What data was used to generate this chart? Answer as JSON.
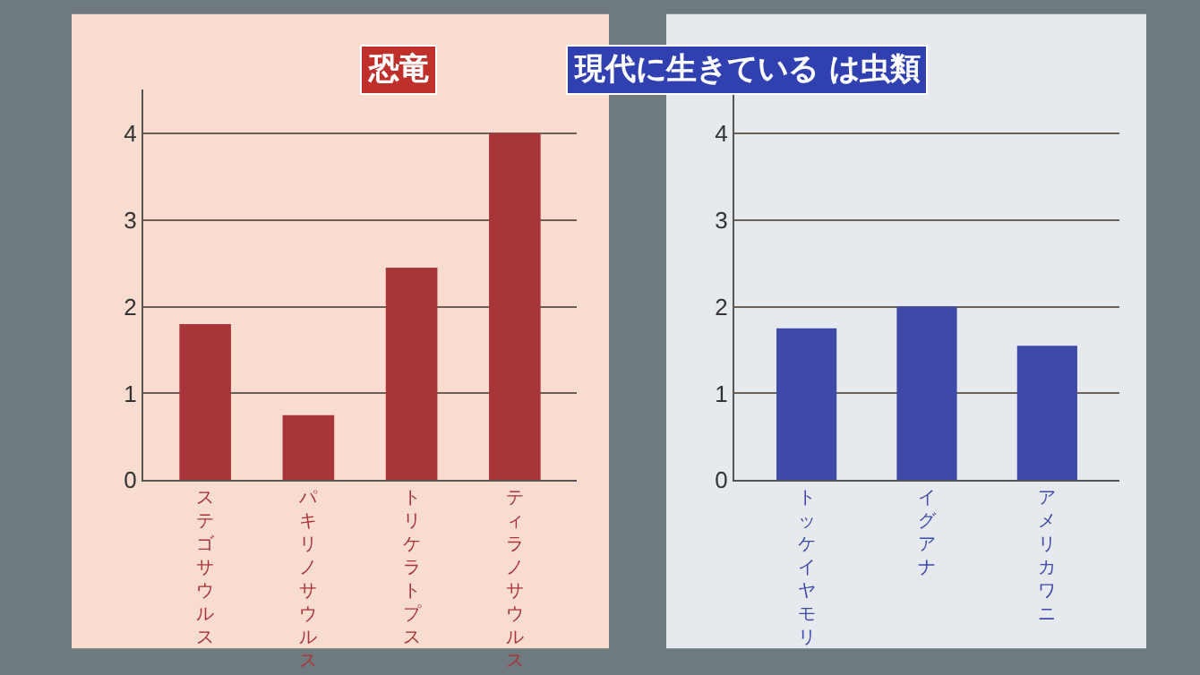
{
  "chart_data": [
    {
      "type": "bar",
      "title": "恐竜",
      "categories": [
        "ステゴサウルス",
        "パキリノサウルス",
        "トリケラトプス",
        "ティラノサウルス"
      ],
      "values": [
        1.8,
        0.75,
        2.45,
        4.0
      ],
      "color": "#a8353a",
      "ylim": [
        0,
        4.5
      ],
      "yticks": [
        0,
        1,
        2,
        3,
        4
      ],
      "grid": "y"
    },
    {
      "type": "bar",
      "title": "現代に生きている は虫類",
      "categories": [
        "トッケイヤモリ",
        "イグアナ",
        "アメリカワニ"
      ],
      "values": [
        1.75,
        2.0,
        1.55
      ],
      "color": "#3e4aa8",
      "ylim": [
        0,
        4.5
      ],
      "yticks": [
        0,
        1,
        2,
        3,
        4
      ],
      "grid": "y"
    }
  ]
}
